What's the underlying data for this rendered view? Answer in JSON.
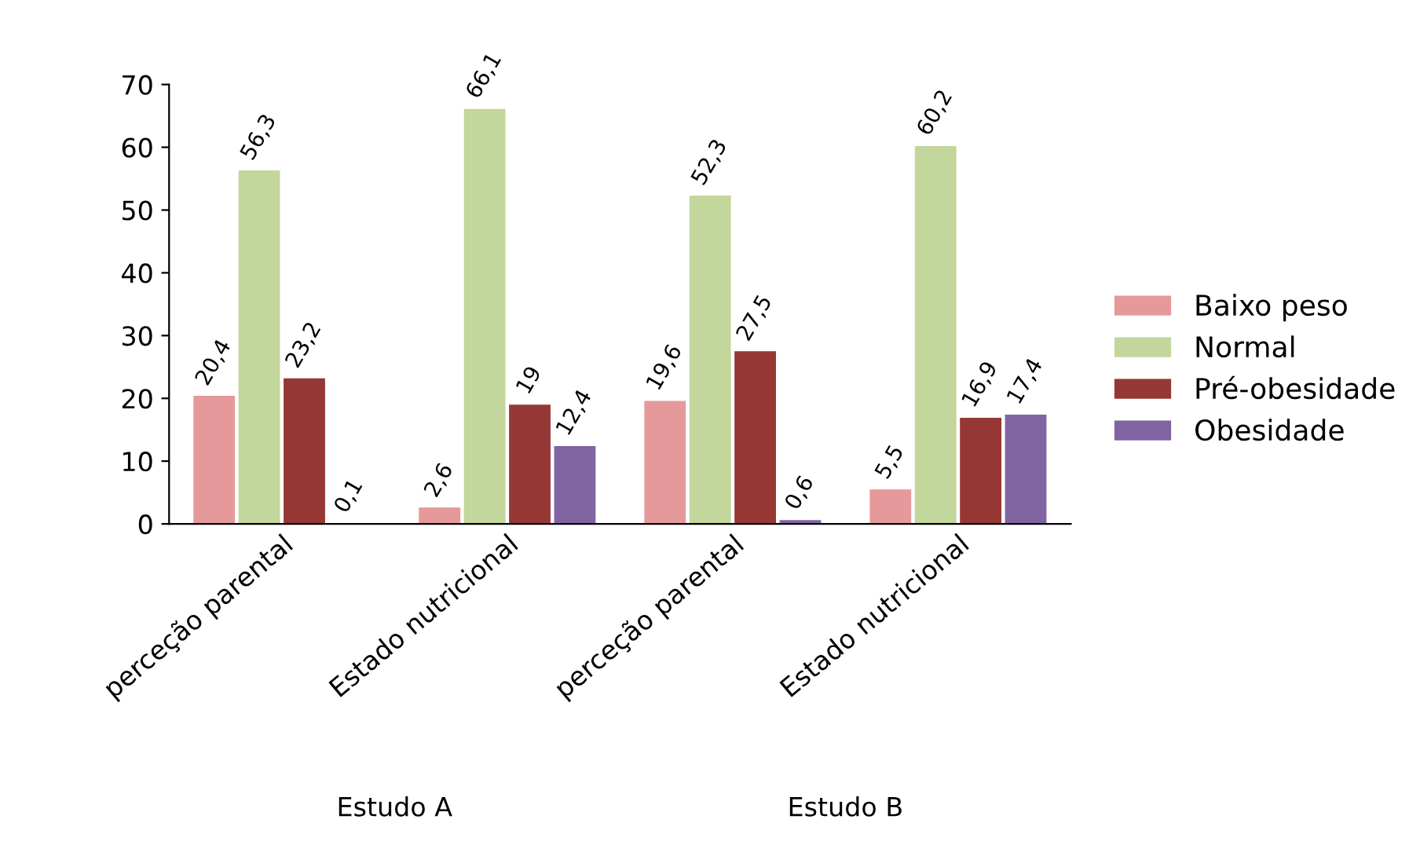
{
  "chart_data": {
    "type": "bar",
    "categories": [
      "perceção parental",
      "Estado nutricional",
      "perceção parental",
      "Estado nutricional"
    ],
    "series": [
      {
        "name": "Baixo peso",
        "color": "#e6999a",
        "values": [
          20.4,
          2.6,
          19.6,
          5.5
        ],
        "value_labels": [
          "20,4",
          "2,6",
          "19,6",
          "5,5"
        ]
      },
      {
        "name": "Normal",
        "color": "#c3d69b",
        "values": [
          56.3,
          66.1,
          52.3,
          60.2
        ],
        "value_labels": [
          "56,3",
          "66,1",
          "52,3",
          "60,2"
        ]
      },
      {
        "name": "Pré-obesidade",
        "color": "#953735",
        "values": [
          23.2,
          19,
          27.5,
          16.9
        ],
        "value_labels": [
          "23,2",
          "19",
          "27,5",
          "16,9"
        ]
      },
      {
        "name": "Obesidade",
        "color": "#8064a2",
        "values": [
          0.1,
          12.4,
          0.6,
          17.4
        ],
        "value_labels": [
          "0,1",
          "12,4",
          "0,6",
          "17,4"
        ]
      }
    ],
    "ylim": [
      0,
      70
    ],
    "yticks": [
      0,
      10,
      20,
      30,
      40,
      50,
      60,
      70
    ],
    "annotations": [
      "Estudo A",
      "Estudo B"
    ],
    "legend": "right",
    "grid": false
  }
}
